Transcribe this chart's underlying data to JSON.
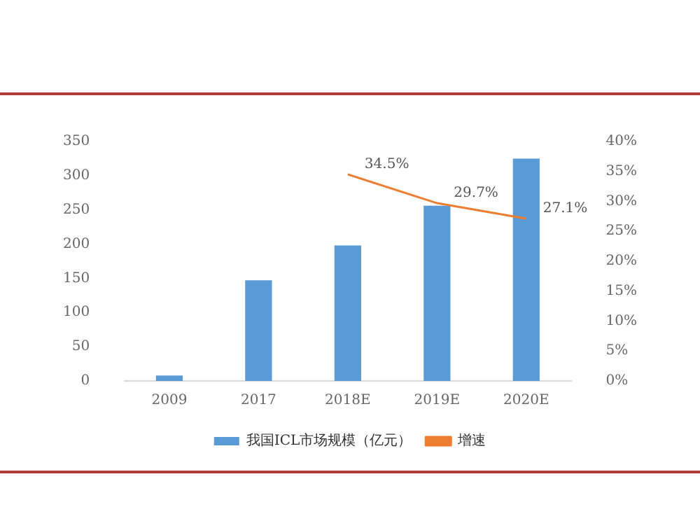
{
  "chart_data": {
    "type": "bar",
    "categories": [
      "2009",
      "2017",
      "2018E",
      "2019E",
      "2020E"
    ],
    "series": [
      {
        "name": "我国ICL市场规模（亿元）",
        "color": "#5b9bd5",
        "values": [
          8,
          147,
          198,
          256,
          325
        ]
      },
      {
        "name": "增速",
        "type": "line",
        "axis": "y2",
        "color": "#ed7d31",
        "marker": "none",
        "values": [
          null,
          null,
          34.5,
          29.7,
          27.1
        ],
        "value_labels": [
          null,
          null,
          "34.5%",
          "29.7%",
          "27.1%"
        ]
      }
    ],
    "ylim": [
      0,
      350
    ],
    "yticks": [
      0,
      50,
      100,
      150,
      200,
      250,
      300,
      350
    ],
    "y2lim": [
      0,
      40
    ],
    "y2ticks": [
      {
        "value": 0,
        "label": "0%"
      },
      {
        "value": 5,
        "label": "5%"
      },
      {
        "value": 10,
        "label": "10%"
      },
      {
        "value": 15,
        "label": "15%"
      },
      {
        "value": 20,
        "label": "20%"
      },
      {
        "value": 25,
        "label": "25%"
      },
      {
        "value": 30,
        "label": "30%"
      },
      {
        "value": 35,
        "label": "35%"
      },
      {
        "value": 40,
        "label": "40%"
      }
    ],
    "grid": false,
    "legend": "bottom"
  }
}
